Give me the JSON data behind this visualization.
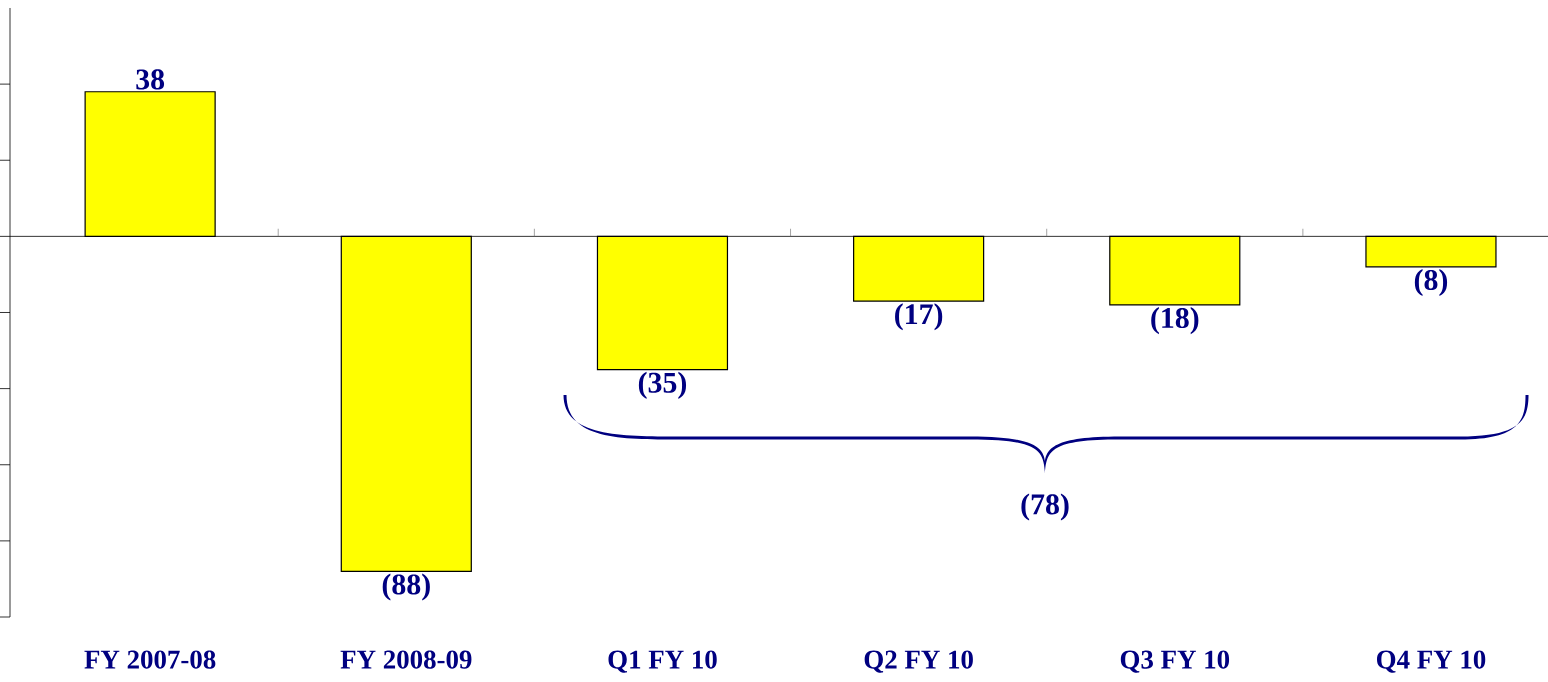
{
  "chart_data": {
    "type": "bar",
    "categories": [
      "FY 2007-08",
      "FY 2008-09",
      "Q1 FY 10",
      "Q2 FY 10",
      "Q3 FY 10",
      "Q4 FY 10"
    ],
    "values": [
      38,
      -88,
      -35,
      -17,
      -18,
      -8
    ],
    "value_labels": [
      "38",
      "(88)",
      "(35)",
      "(17)",
      "(18)",
      "(8)"
    ],
    "color": "#ffff00",
    "ylim": [
      -100,
      60
    ],
    "yticks": [
      {
        "value": -100,
        "label": null
      },
      {
        "value": -80,
        "label": null
      },
      {
        "value": -60,
        "label": null
      },
      {
        "value": -40,
        "label": null
      },
      {
        "value": -20,
        "label": null
      },
      {
        "value": 0,
        "label": null
      },
      {
        "value": 20,
        "label": null
      },
      {
        "value": 40,
        "label": null
      }
    ],
    "tick_labels": "x",
    "annotations": [
      "(78)"
    ]
  }
}
